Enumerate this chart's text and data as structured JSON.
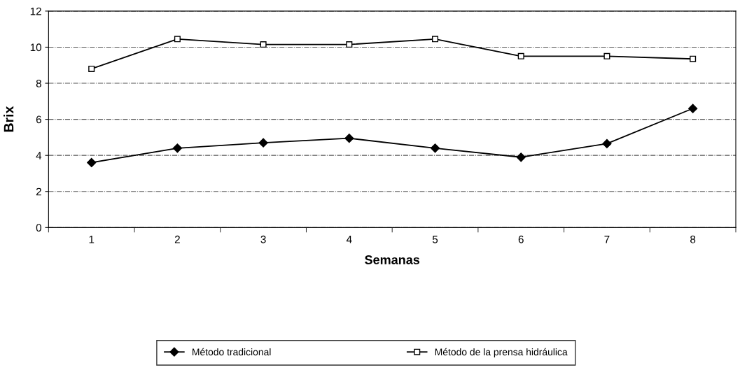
{
  "chart_data": {
    "type": "line",
    "xlabel": "Semanas",
    "ylabel": "Brix",
    "categories": [
      "1",
      "2",
      "3",
      "4",
      "5",
      "6",
      "7",
      "8"
    ],
    "series": [
      {
        "name": "Método tradicional",
        "color": "#000000",
        "marker": "diamond",
        "values": [
          3.6,
          4.4,
          4.7,
          4.95,
          4.4,
          3.9,
          4.65,
          6.6
        ]
      },
      {
        "name": "Método de la prensa hidráulica",
        "color": "#000000",
        "marker": "square",
        "values": [
          8.8,
          10.45,
          10.15,
          10.15,
          10.45,
          9.5,
          9.5,
          9.35
        ]
      }
    ],
    "ylim": [
      0,
      12
    ],
    "yticks": [
      0,
      2,
      4,
      6,
      8,
      10,
      12
    ],
    "grid": "y",
    "legend": "bottom",
    "line_style": "solid"
  }
}
